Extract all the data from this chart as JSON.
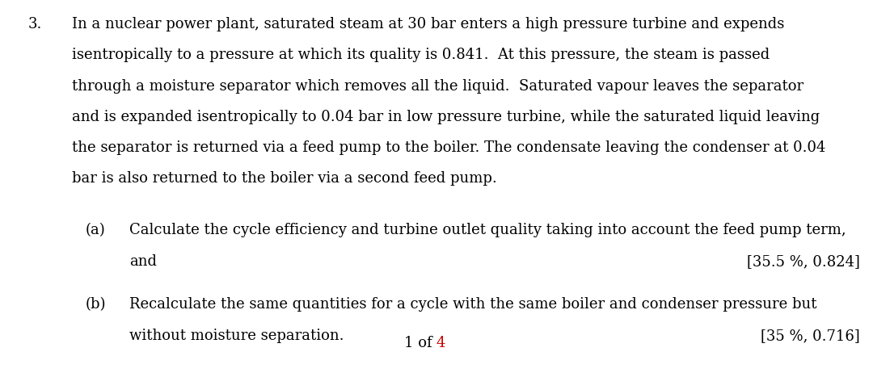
{
  "bg_color": "#ffffff",
  "question_number": "3.",
  "main_text_lines": [
    "In a nuclear power plant, saturated steam at 30 bar enters a high pressure turbine and expends",
    "isentropically to a pressure at which its quality is 0.841.  At this pressure, the steam is passed",
    "through a moisture separator which removes all the liquid.  Saturated vapour leaves the separator",
    "and is expanded isentropically to 0.04 bar in low pressure turbine, while the saturated liquid leaving",
    "the separator is returned via a feed pump to the boiler. The condensate leaving the condenser at 0.04",
    "bar is also returned to the boiler via a second feed pump."
  ],
  "part_a_label": "(a)",
  "part_a_line1": "Calculate the cycle efficiency and turbine outlet quality taking into account the feed pump term,",
  "part_a_line2": "and",
  "part_a_answer": "\u000535.5 %, 0.824\u0005",
  "part_b_label": "(b)",
  "part_b_line1": "Recalculate the same quantities for a cycle with the same boiler and condenser pressure but",
  "part_b_line2": "without moisture separation.",
  "part_b_answer": "\u000535 %, 0.716\u0005",
  "footer_text_black": "1 of ",
  "footer_text_red": "4",
  "font_size_main": 13.0,
  "font_size_footer": 13.0
}
